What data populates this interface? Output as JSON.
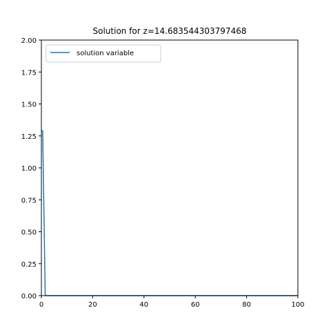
{
  "chart_data": {
    "type": "line",
    "title": "Solution for z=14.683544303797468",
    "xlabel": "",
    "ylabel": "",
    "xlim": [
      0,
      100
    ],
    "ylim": [
      0,
      2.0
    ],
    "x_ticks": [
      0,
      20,
      40,
      60,
      80,
      100
    ],
    "x_tick_labels": [
      "0",
      "20",
      "40",
      "60",
      "80",
      "100"
    ],
    "y_ticks": [
      0,
      0.25,
      0.5,
      0.75,
      1.0,
      1.25,
      1.5,
      1.75,
      2.0
    ],
    "y_tick_labels": [
      "0.00",
      "0.25",
      "0.50",
      "0.75",
      "1.00",
      "1.25",
      "1.50",
      "1.75",
      "2.00"
    ],
    "grid": false,
    "legend_position": "upper-left",
    "series": [
      {
        "name": "solution variable",
        "color": "#1f77b4",
        "x": [
          0,
          0.5,
          1,
          1.5,
          2,
          5,
          10,
          20,
          40,
          60,
          80,
          100
        ],
        "y": [
          1.29,
          1.29,
          0.65,
          0.0,
          0.0,
          0.0,
          0.0,
          0.0,
          0.0,
          0.0,
          0.0,
          0.0
        ]
      }
    ]
  }
}
